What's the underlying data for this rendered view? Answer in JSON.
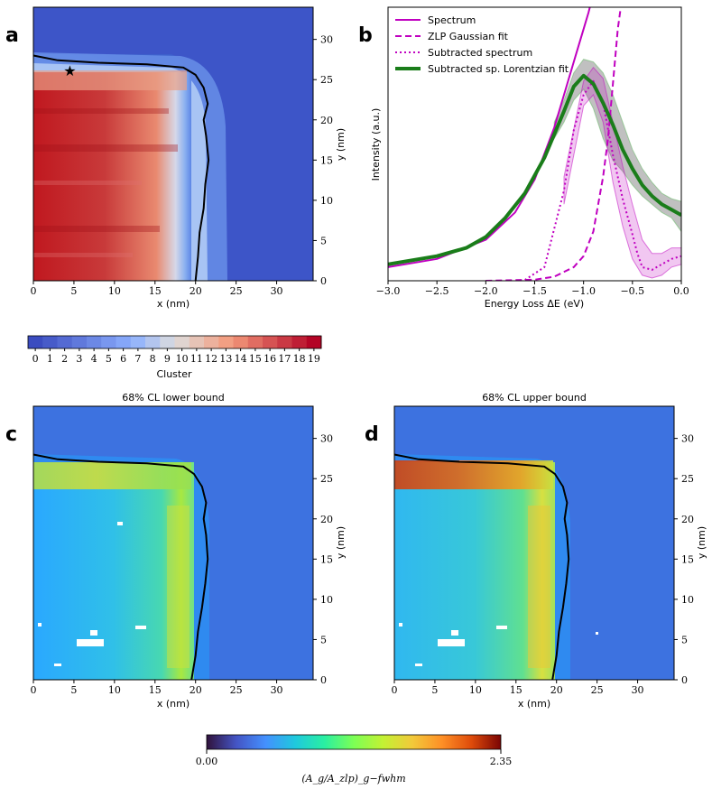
{
  "panel_labels": {
    "a": "a",
    "b": "b",
    "c": "c",
    "d": "d"
  },
  "colors": {
    "spectrum": "#c000c0",
    "zlp": "#c000c0",
    "subtracted": "#c000c0",
    "lorentz": "#1a7d1a",
    "map_background": "#3d6fd6",
    "boundary": "#000000"
  },
  "chart_data": [
    {
      "id": "a",
      "type": "heatmap",
      "title": "",
      "xlabel": "x (nm)",
      "ylabel": "y (nm)",
      "xlim": [
        0,
        34.5
      ],
      "ylim": [
        0,
        34
      ],
      "xticks": [
        0,
        5,
        10,
        15,
        20,
        25,
        30
      ],
      "yticks": [
        0,
        5,
        10,
        15,
        20,
        25,
        30
      ],
      "star_marker": {
        "x": 4.5,
        "y": 26
      },
      "boundary": [
        [
          20.0,
          0
        ],
        [
          20.3,
          3
        ],
        [
          20.5,
          6
        ],
        [
          21.0,
          9
        ],
        [
          21.2,
          12
        ],
        [
          21.6,
          15
        ],
        [
          21.3,
          18
        ],
        [
          21.0,
          20
        ],
        [
          21.5,
          22
        ],
        [
          21.0,
          24
        ],
        [
          20.0,
          25.6
        ],
        [
          18.5,
          26.5
        ],
        [
          14,
          26.9
        ],
        [
          8,
          27.1
        ],
        [
          3,
          27.4
        ],
        [
          0,
          28.0
        ]
      ],
      "colorbar": {
        "label": "Cluster",
        "ticks": [
          "0",
          "1",
          "2",
          "3",
          "4",
          "5",
          "6",
          "7",
          "8",
          "9",
          "10",
          "11",
          "12",
          "13",
          "14",
          "15",
          "16",
          "17",
          "18",
          "19"
        ]
      }
    },
    {
      "id": "b",
      "type": "line",
      "title": "",
      "xlabel": "Energy Loss ΔE (eV)",
      "ylabel": "Intensity (a.u.)",
      "xlim": [
        -3.0,
        0.0
      ],
      "ylim": [
        0,
        1.0
      ],
      "xticks": [
        "-3.0",
        "-2.5",
        "-2.0",
        "-1.5",
        "-1.0",
        "-0.5",
        "0.0"
      ],
      "legend_position": "top-left",
      "series": [
        {
          "name": "Spectrum",
          "style": "solid",
          "x": [
            -3.0,
            -2.5,
            -2.0,
            -1.7,
            -1.5,
            -1.3,
            -1.2,
            -1.1,
            -1.0,
            -0.95,
            -0.9
          ],
          "y": [
            0.05,
            0.08,
            0.15,
            0.25,
            0.37,
            0.56,
            0.68,
            0.8,
            0.92,
            0.98,
            1.05
          ]
        },
        {
          "name": "ZLP Gaussian fit",
          "style": "dashed",
          "x": [
            -2.0,
            -1.5,
            -1.3,
            -1.1,
            -1.0,
            -0.9,
            -0.8,
            -0.75,
            -0.7,
            -0.65,
            -0.6
          ],
          "y": [
            0.0,
            0.004,
            0.015,
            0.05,
            0.09,
            0.18,
            0.38,
            0.52,
            0.72,
            0.92,
            1.05
          ]
        },
        {
          "name": "Subtracted spectrum",
          "style": "dotted",
          "x": [
            -1.6,
            -1.4,
            -1.2,
            -1.1,
            -1.0,
            -0.9,
            -0.8,
            -0.7,
            -0.6,
            -0.5,
            -0.45,
            -0.4,
            -0.3,
            -0.2,
            -0.1,
            0.0
          ],
          "y": [
            0.003,
            0.05,
            0.33,
            0.55,
            0.68,
            0.73,
            0.65,
            0.46,
            0.3,
            0.17,
            0.1,
            0.05,
            0.04,
            0.06,
            0.08,
            0.09
          ]
        },
        {
          "name": "Subtracted sp. Lorentzian fit",
          "style": "solid-thick",
          "x": [
            -3.0,
            -2.5,
            -2.2,
            -2.0,
            -1.8,
            -1.6,
            -1.4,
            -1.2,
            -1.1,
            -1.0,
            -0.9,
            -0.8,
            -0.7,
            -0.6,
            -0.5,
            -0.4,
            -0.3,
            -0.2,
            -0.1,
            0.0
          ],
          "y": [
            0.06,
            0.09,
            0.12,
            0.16,
            0.23,
            0.32,
            0.45,
            0.62,
            0.71,
            0.75,
            0.72,
            0.65,
            0.57,
            0.48,
            0.41,
            0.35,
            0.31,
            0.28,
            0.26,
            0.24
          ]
        }
      ],
      "bands": [
        {
          "series": "Subtracted sp. Lorentzian fit",
          "x": [
            -1.3,
            -1.2,
            -1.1,
            -1.0,
            -0.9,
            -0.8,
            -0.7,
            -0.6,
            -0.5,
            -0.4,
            -0.3,
            -0.2,
            -0.1,
            0.0
          ],
          "lower": [
            0.52,
            0.58,
            0.66,
            0.7,
            0.63,
            0.52,
            0.44,
            0.4,
            0.35,
            0.31,
            0.28,
            0.25,
            0.23,
            0.18
          ],
          "upper": [
            0.58,
            0.66,
            0.76,
            0.81,
            0.8,
            0.76,
            0.68,
            0.58,
            0.48,
            0.41,
            0.36,
            0.32,
            0.3,
            0.29
          ]
        },
        {
          "series": "Subtracted spectrum",
          "x": [
            -1.2,
            -1.0,
            -0.9,
            -0.8,
            -0.7,
            -0.6,
            -0.5,
            -0.4,
            -0.3,
            -0.2,
            -0.1,
            0.0
          ],
          "lower": [
            0.28,
            0.64,
            0.68,
            0.58,
            0.36,
            0.2,
            0.08,
            0.02,
            0.01,
            0.02,
            0.05,
            0.06
          ],
          "upper": [
            0.38,
            0.73,
            0.78,
            0.74,
            0.58,
            0.42,
            0.28,
            0.15,
            0.1,
            0.1,
            0.12,
            0.12
          ]
        }
      ]
    },
    {
      "id": "c",
      "type": "heatmap",
      "title": "68% CL lower bound",
      "xlabel": "x (nm)",
      "ylabel": "y (nm)",
      "xlim": [
        0,
        34.5
      ],
      "ylim": [
        0,
        34
      ],
      "xticks": [
        0,
        5,
        10,
        15,
        20,
        25,
        30
      ],
      "yticks": [
        0,
        5,
        10,
        15,
        20,
        25,
        30
      ],
      "boundary": [
        [
          19.5,
          0
        ],
        [
          20.0,
          3
        ],
        [
          20.3,
          6
        ],
        [
          20.8,
          9
        ],
        [
          21.2,
          12
        ],
        [
          21.5,
          15
        ],
        [
          21.3,
          18
        ],
        [
          21.0,
          20
        ],
        [
          21.3,
          22
        ],
        [
          20.8,
          24
        ],
        [
          19.8,
          25.6
        ],
        [
          18.5,
          26.5
        ],
        [
          14,
          26.9
        ],
        [
          8,
          27.1
        ],
        [
          3,
          27.4
        ],
        [
          0,
          28.0
        ]
      ]
    },
    {
      "id": "d",
      "type": "heatmap",
      "title": "68% CL upper bound",
      "xlabel": "x (nm)",
      "ylabel": "y (nm)",
      "xlim": [
        0,
        34.5
      ],
      "ylim": [
        0,
        34
      ],
      "xticks": [
        0,
        5,
        10,
        15,
        20,
        25,
        30
      ],
      "yticks": [
        0,
        5,
        10,
        15,
        20,
        25,
        30
      ],
      "boundary": [
        [
          19.5,
          0
        ],
        [
          20.0,
          3
        ],
        [
          20.3,
          6
        ],
        [
          20.8,
          9
        ],
        [
          21.2,
          12
        ],
        [
          21.5,
          15
        ],
        [
          21.3,
          18
        ],
        [
          21.0,
          20
        ],
        [
          21.3,
          22
        ],
        [
          20.8,
          24
        ],
        [
          19.8,
          25.6
        ],
        [
          18.5,
          26.5
        ],
        [
          14,
          26.9
        ],
        [
          8,
          27.1
        ],
        [
          3,
          27.4
        ],
        [
          0,
          28.0
        ]
      ],
      "colorbar": {
        "label": "(A_g/A_zlp)_g−fwhm",
        "min_label": "0.00",
        "max_label": "2.35",
        "range": [
          0,
          2.35
        ]
      }
    }
  ]
}
